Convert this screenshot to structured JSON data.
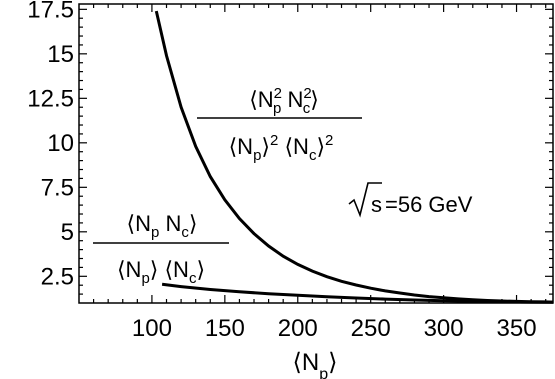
{
  "chart_data": {
    "type": "line",
    "xlabel": "⟨Np⟩",
    "ylabel": "",
    "xlim": [
      50,
      375
    ],
    "ylim": [
      1.0,
      17.8
    ],
    "x_ticks": [
      100,
      150,
      200,
      250,
      300,
      350
    ],
    "y_ticks": [
      2.5,
      5,
      7.5,
      10,
      12.5,
      15,
      17.5
    ],
    "x_tick_labels": [
      "100",
      "150",
      "200",
      "250",
      "300",
      "350"
    ],
    "y_tick_labels": [
      "2.5",
      "5",
      "7.5",
      "10",
      "12.5",
      "15",
      "17.5"
    ],
    "annotations": {
      "energy_label": "=56 GeV",
      "energy_sqrt": "s"
    },
    "series": [
      {
        "label_numerator": "⟨N_p^2 N_c^2⟩",
        "label_denominator": "⟨N_p⟩^2 ⟨N_c⟩^2",
        "x": [
          103,
          110,
          120,
          130,
          140,
          150,
          160,
          170,
          180,
          190,
          200,
          210,
          220,
          230,
          240,
          250,
          260,
          270,
          280,
          290,
          300,
          310,
          320,
          330,
          340,
          350,
          360,
          370,
          375
        ],
        "y": [
          17.4,
          14.9,
          12.0,
          9.8,
          8.1,
          6.8,
          5.75,
          4.9,
          4.2,
          3.63,
          3.17,
          2.79,
          2.48,
          2.22,
          2.01,
          1.83,
          1.68,
          1.56,
          1.45,
          1.36,
          1.29,
          1.23,
          1.18,
          1.14,
          1.11,
          1.09,
          1.07,
          1.06,
          1.05
        ]
      },
      {
        "label_numerator": "⟨N_p N_c⟩",
        "label_denominator": "⟨N_p⟩ ⟨N_c⟩",
        "x": [
          107,
          120,
          140,
          160,
          180,
          200,
          220,
          240,
          260,
          280,
          300,
          320,
          340,
          360,
          375
        ],
        "y": [
          2.05,
          1.92,
          1.76,
          1.63,
          1.52,
          1.43,
          1.35,
          1.28,
          1.22,
          1.17,
          1.13,
          1.1,
          1.07,
          1.05,
          1.04
        ]
      }
    ]
  }
}
